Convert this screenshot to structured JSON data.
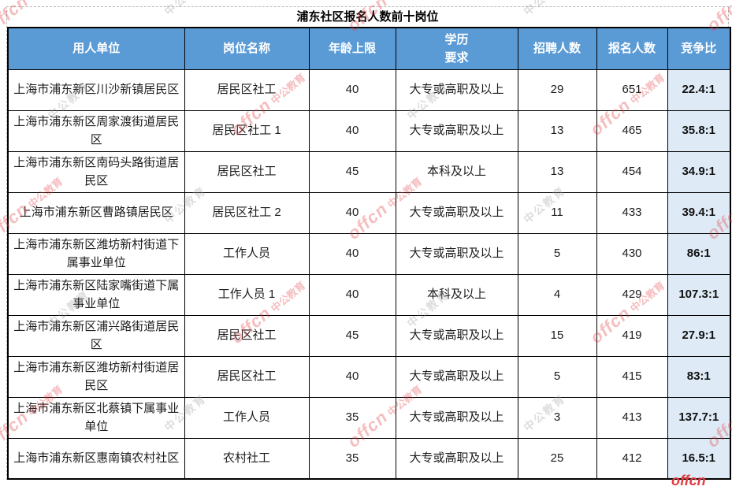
{
  "title": "浦东社区报名人数前十岗位",
  "colors": {
    "header_bg": "#5B9BD5",
    "header_text": "#ffffff",
    "ratio_bg": "#DEEBF7",
    "grid": "#000000",
    "watermark_red": "#e23a3f",
    "watermark_gray": "#9b9b9b"
  },
  "watermark": {
    "brand": "offcn",
    "company": "中公教育"
  },
  "table": {
    "columns": [
      {
        "key": "employer",
        "label": "用人单位"
      },
      {
        "key": "position",
        "label": "岗位名称"
      },
      {
        "key": "age_limit",
        "label": "年龄上限"
      },
      {
        "key": "education",
        "label": "学历\n要求"
      },
      {
        "key": "recruit_count",
        "label": "招聘人数"
      },
      {
        "key": "applicant_count",
        "label": "报名人数"
      },
      {
        "key": "ratio",
        "label": "竞争比"
      }
    ],
    "rows": [
      [
        "上海市浦东新区川沙新镇居民区",
        "居民区社工",
        "40",
        "大专或高职及以上",
        "29",
        "651",
        "22.4:1"
      ],
      [
        "上海市浦东新区周家渡街道居民区",
        "居民区社工 1",
        "40",
        "大专或高职及以上",
        "13",
        "465",
        "35.8:1"
      ],
      [
        "上海市浦东新区南码头路街道居民区",
        "居民区社工",
        "45",
        "本科及以上",
        "13",
        "454",
        "34.9:1"
      ],
      [
        "上海市浦东新区曹路镇居民区",
        "居民区社工 2",
        "40",
        "大专或高职及以上",
        "11",
        "433",
        "39.4:1"
      ],
      [
        "上海市浦东新区潍坊新村街道下属事业单位",
        "工作人员",
        "40",
        "大专或高职及以上",
        "5",
        "430",
        "86:1"
      ],
      [
        "上海市浦东新区陆家嘴街道下属事业单位",
        "工作人员 1",
        "40",
        "本科及以上",
        "4",
        "429",
        "107.3:1"
      ],
      [
        "上海市浦东新区浦兴路街道居民区",
        "居民区社工",
        "45",
        "大专或高职及以上",
        "15",
        "419",
        "27.9:1"
      ],
      [
        "上海市浦东新区潍坊新村街道居民区",
        "居民区社工",
        "40",
        "大专或高职及以上",
        "5",
        "415",
        "83:1"
      ],
      [
        "上海市浦东新区北蔡镇下属事业单位",
        "工作人员",
        "35",
        "大专或高职及以上",
        "3",
        "413",
        "137.7:1"
      ],
      [
        "上海市浦东新区惠南镇农村社区",
        "农村社工",
        "35",
        "大专或高职及以上",
        "25",
        "412",
        "16.5:1"
      ]
    ]
  }
}
